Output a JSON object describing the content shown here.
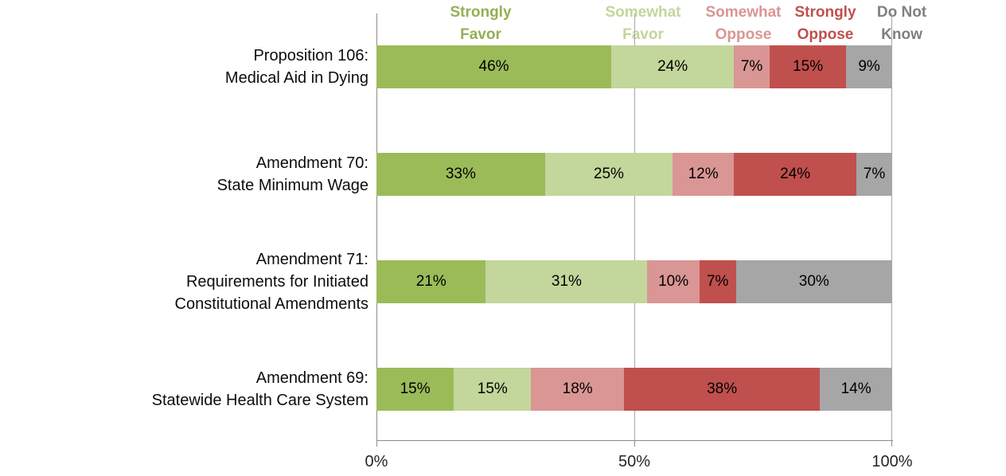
{
  "page": {
    "background": "#FFFFFF"
  },
  "chart_data": {
    "type": "bar",
    "stacked": true,
    "orientation": "horizontal",
    "title": "",
    "legend_position": "top",
    "categories": [
      {
        "lines": [
          "Proposition 106:",
          "Medical Aid in Dying"
        ]
      },
      {
        "lines": [
          "Amendment 70:",
          "State Minimum Wage"
        ]
      },
      {
        "lines": [
          "Amendment 71:",
          "Requirements for Initiated",
          "Constitutional Amendments"
        ]
      },
      {
        "lines": [
          "Amendment 69:",
          "Statewide Health Care System"
        ]
      }
    ],
    "series": [
      {
        "name": "Strongly Favor",
        "legend_lines": [
          "Strongly",
          "Favor"
        ],
        "color": "#9BBB59",
        "legend_text_color": "#94B054",
        "values": [
          46,
          33,
          21,
          15
        ]
      },
      {
        "name": "Somewhat Favor",
        "legend_lines": [
          "Somewhat",
          "Favor"
        ],
        "color": "#C3D69B",
        "legend_text_color": "#C3D69B",
        "values": [
          24,
          25,
          31,
          15
        ]
      },
      {
        "name": "Somewhat Oppose",
        "legend_lines": [
          "Somewhat",
          "Oppose"
        ],
        "color": "#D99694",
        "legend_text_color": "#D99694",
        "values": [
          7,
          12,
          10,
          18
        ]
      },
      {
        "name": "Strongly Oppose",
        "legend_lines": [
          "Strongly",
          "Oppose"
        ],
        "color": "#C0504D",
        "legend_text_color": "#C0504D",
        "values": [
          15,
          24,
          7,
          38
        ]
      },
      {
        "name": "Do Not Know",
        "legend_lines": [
          "Do Not",
          "Know"
        ],
        "color": "#A6A6A6",
        "legend_text_color": "#808080",
        "values": [
          9,
          7,
          30,
          14
        ]
      }
    ],
    "value_suffix": "%",
    "x_axis": {
      "min": 0,
      "max": 100,
      "ticks": [
        {
          "label": "0%",
          "value": 0
        },
        {
          "label": "50%",
          "value": 50
        },
        {
          "label": "100%",
          "value": 100
        }
      ]
    },
    "gridlines": [
      0,
      50,
      100
    ],
    "axis_color": "#8C8C8C",
    "gridline_color": "#A6A6A6"
  }
}
